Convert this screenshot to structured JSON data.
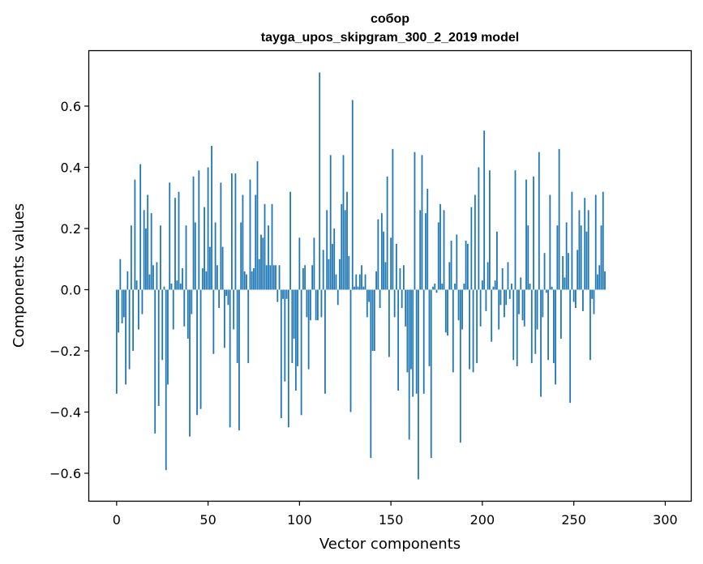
{
  "chart_data": {
    "type": "bar",
    "title": "собор",
    "subtitle": "tayga_upos_skipgram_300_2_2019 model",
    "xlabel": "Vector components",
    "ylabel": "Components values",
    "xlim": [
      -15,
      314
    ],
    "ylim": [
      -0.69,
      0.78
    ],
    "xticks": [
      0,
      50,
      100,
      150,
      200,
      250,
      300
    ],
    "yticks": [
      -0.6,
      -0.4,
      -0.2,
      0.0,
      0.2,
      0.4,
      0.6
    ],
    "x_tick_labels": [
      "0",
      "50",
      "100",
      "150",
      "200",
      "250",
      "300"
    ],
    "y_tick_labels": [
      "−0.6",
      "−0.4",
      "−0.2",
      "0.0",
      "0.2",
      "0.4",
      "0.6"
    ],
    "bar_color": "#1f77b4",
    "grid": false,
    "legend": "none",
    "values": [
      -0.34,
      -0.14,
      0.1,
      -0.11,
      -0.09,
      -0.31,
      0.06,
      -0.26,
      0.21,
      -0.2,
      0.36,
      0.03,
      -0.13,
      0.41,
      -0.08,
      0.26,
      0.2,
      0.31,
      0.05,
      0.25,
      0.08,
      -0.47,
      0.09,
      -0.38,
      0.21,
      -0.23,
      0.01,
      -0.59,
      -0.31,
      0.35,
      0.02,
      -0.13,
      0.3,
      0.03,
      0.32,
      0.02,
      0.07,
      -0.12,
      0.21,
      -0.16,
      -0.48,
      -0.08,
      0.37,
      0.22,
      -0.41,
      0.39,
      -0.39,
      0.07,
      0.27,
      0.06,
      0.4,
      0.14,
      0.47,
      -0.21,
      0.22,
      0.08,
      -0.06,
      0.35,
      0.14,
      -0.19,
      -0.02,
      -0.05,
      -0.45,
      0.38,
      -0.13,
      0.38,
      -0.24,
      -0.46,
      0.22,
      0.31,
      0.06,
      0.05,
      -0.24,
      0.36,
      0.06,
      0.07,
      0.31,
      0.42,
      0.1,
      0.18,
      0.17,
      0.28,
      0.08,
      0.21,
      0.08,
      0.28,
      0.08,
      0.08,
      -0.04,
      0.08,
      -0.42,
      -0.03,
      -0.3,
      -0.03,
      -0.45,
      0.32,
      -0.24,
      -0.16,
      -0.33,
      -0.25,
      0.17,
      -0.41,
      0.07,
      0.08,
      -0.09,
      -0.26,
      -0.1,
      0.08,
      0.17,
      -0.1,
      -0.1,
      0.71,
      -0.09,
      0.13,
      -0.34,
      0.26,
      0.1,
      0.44,
      0.15,
      0.2,
      0.05,
      -0.05,
      0.1,
      0.28,
      0.44,
      0.26,
      0.32,
      0.11,
      -0.4,
      0.62,
      0.01,
      0.05,
      0.01,
      0.05,
      0.08,
      0.01,
      0.05,
      -0.09,
      -0.04,
      -0.55,
      -0.2,
      -0.2,
      0.06,
      0.23,
      -0.06,
      0.25,
      0.19,
      0.09,
      0.37,
      -0.22,
      0.17,
      0.46,
      -0.09,
      0.15,
      -0.33,
      0.07,
      -0.06,
      0.08,
      -0.12,
      -0.27,
      -0.49,
      -0.26,
      -0.35,
      0.45,
      -0.34,
      -0.62,
      0.26,
      0.44,
      -0.34,
      0.25,
      0.33,
      -0.25,
      -0.55,
      0.01,
      0.02,
      -0.01,
      0.22,
      0.28,
      0.02,
      0.26,
      -0.14,
      -0.15,
      0.09,
      0.16,
      -0.27,
      0.02,
      0.18,
      -0.1,
      -0.5,
      -0.13,
      0.02,
      0.16,
      0.15,
      -0.26,
      0.27,
      -0.27,
      0.31,
      -0.24,
      0.4,
      -0.12,
      0.03,
      0.52,
      -0.07,
      0.09,
      0.39,
      -0.17,
      0.01,
      0.03,
      0.19,
      -0.13,
      -0.05,
      0.07,
      -0.09,
      -0.05,
      0.09,
      -0.03,
      0.02,
      -0.23,
      0.39,
      -0.25,
      -0.08,
      0.04,
      -0.1,
      -0.12,
      0.36,
      0.21,
      0.02,
      -0.24,
      0.37,
      -0.21,
      -0.13,
      0.45,
      -0.35,
      -0.09,
      0.12,
      -0.01,
      -0.23,
      0.31,
      0.01,
      -0.24,
      -0.31,
      0.21,
      0.46,
      -0.16,
      0.11,
      0.04,
      0.22,
      0.12,
      -0.37,
      0.32,
      -0.04,
      -0.06,
      0.13,
      0.26,
      0.21,
      -0.07,
      0.3,
      0.19,
      0.26,
      -0.23,
      -0.03,
      -0.08,
      0.31,
      0.05,
      0.08,
      0.21,
      0.32,
      0.06
    ]
  }
}
